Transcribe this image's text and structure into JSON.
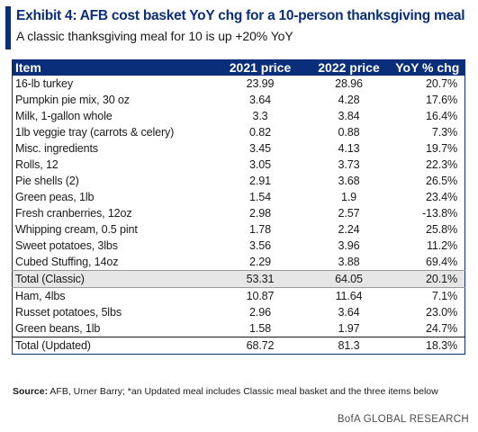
{
  "header": {
    "title": "Exhibit 4: AFB cost basket YoY chg for a 10-person thanksgiving meal",
    "subtitle": "A classic thanksgiving meal for 10 is up +20% YoY"
  },
  "table": {
    "columns": [
      "Item",
      "2021 price",
      "2022 price",
      "YoY % chg"
    ],
    "rows": [
      {
        "item": "16-lb turkey",
        "p2021": "23.99",
        "p2022": "28.96",
        "yoy": "20.7%"
      },
      {
        "item": "Pumpkin pie mix, 30 oz",
        "p2021": "3.64",
        "p2022": "4.28",
        "yoy": "17.6%"
      },
      {
        "item": "Milk, 1-gallon whole",
        "p2021": "3.3",
        "p2022": "3.84",
        "yoy": "16.4%"
      },
      {
        "item": "1lb veggie tray (carrots & celery)",
        "p2021": "0.82",
        "p2022": "0.88",
        "yoy": "7.3%"
      },
      {
        "item": "Misc. ingredients",
        "p2021": "3.45",
        "p2022": "4.13",
        "yoy": "19.7%"
      },
      {
        "item": "Rolls, 12",
        "p2021": "3.05",
        "p2022": "3.73",
        "yoy": "22.3%"
      },
      {
        "item": "Pie shells (2)",
        "p2021": "2.91",
        "p2022": "3.68",
        "yoy": "26.5%"
      },
      {
        "item": "Green peas, 1lb",
        "p2021": "1.54",
        "p2022": "1.9",
        "yoy": "23.4%"
      },
      {
        "item": "Fresh cranberries, 12oz",
        "p2021": "2.98",
        "p2022": "2.57",
        "yoy": "-13.8%"
      },
      {
        "item": "Whipping cream, 0.5 pint",
        "p2021": "1.78",
        "p2022": "2.24",
        "yoy": "25.8%"
      },
      {
        "item": "Sweet potatoes, 3lbs",
        "p2021": "3.56",
        "p2022": "3.96",
        "yoy": "11.2%"
      },
      {
        "item": "Cubed Stuffing, 14oz",
        "p2021": "2.29",
        "p2022": "3.88",
        "yoy": "69.4%"
      },
      {
        "item": "Total (Classic)",
        "p2021": "53.31",
        "p2022": "64.05",
        "yoy": "20.1%"
      },
      {
        "item": "Ham, 4lbs",
        "p2021": "10.87",
        "p2022": "11.64",
        "yoy": "7.1%"
      },
      {
        "item": "Russet potatoes, 5lbs",
        "p2021": "2.96",
        "p2022": "3.64",
        "yoy": "23.0%"
      },
      {
        "item": "Green beans, 1lb",
        "p2021": "1.58",
        "p2022": "1.97",
        "yoy": "24.7%"
      },
      {
        "item": "Total (Updated)",
        "p2021": "68.72",
        "p2022": "81.3",
        "yoy": "18.3%"
      }
    ]
  },
  "footer": {
    "source_label": "Source:",
    "source_text": " AFB, Urner Barry; *an Updated meal includes Classic meal basket and the three items below",
    "brand": "BofA GLOBAL RESEARCH"
  },
  "colors": {
    "accent": "#0b2e7a",
    "total_row_fill": "#e6e6e6"
  }
}
